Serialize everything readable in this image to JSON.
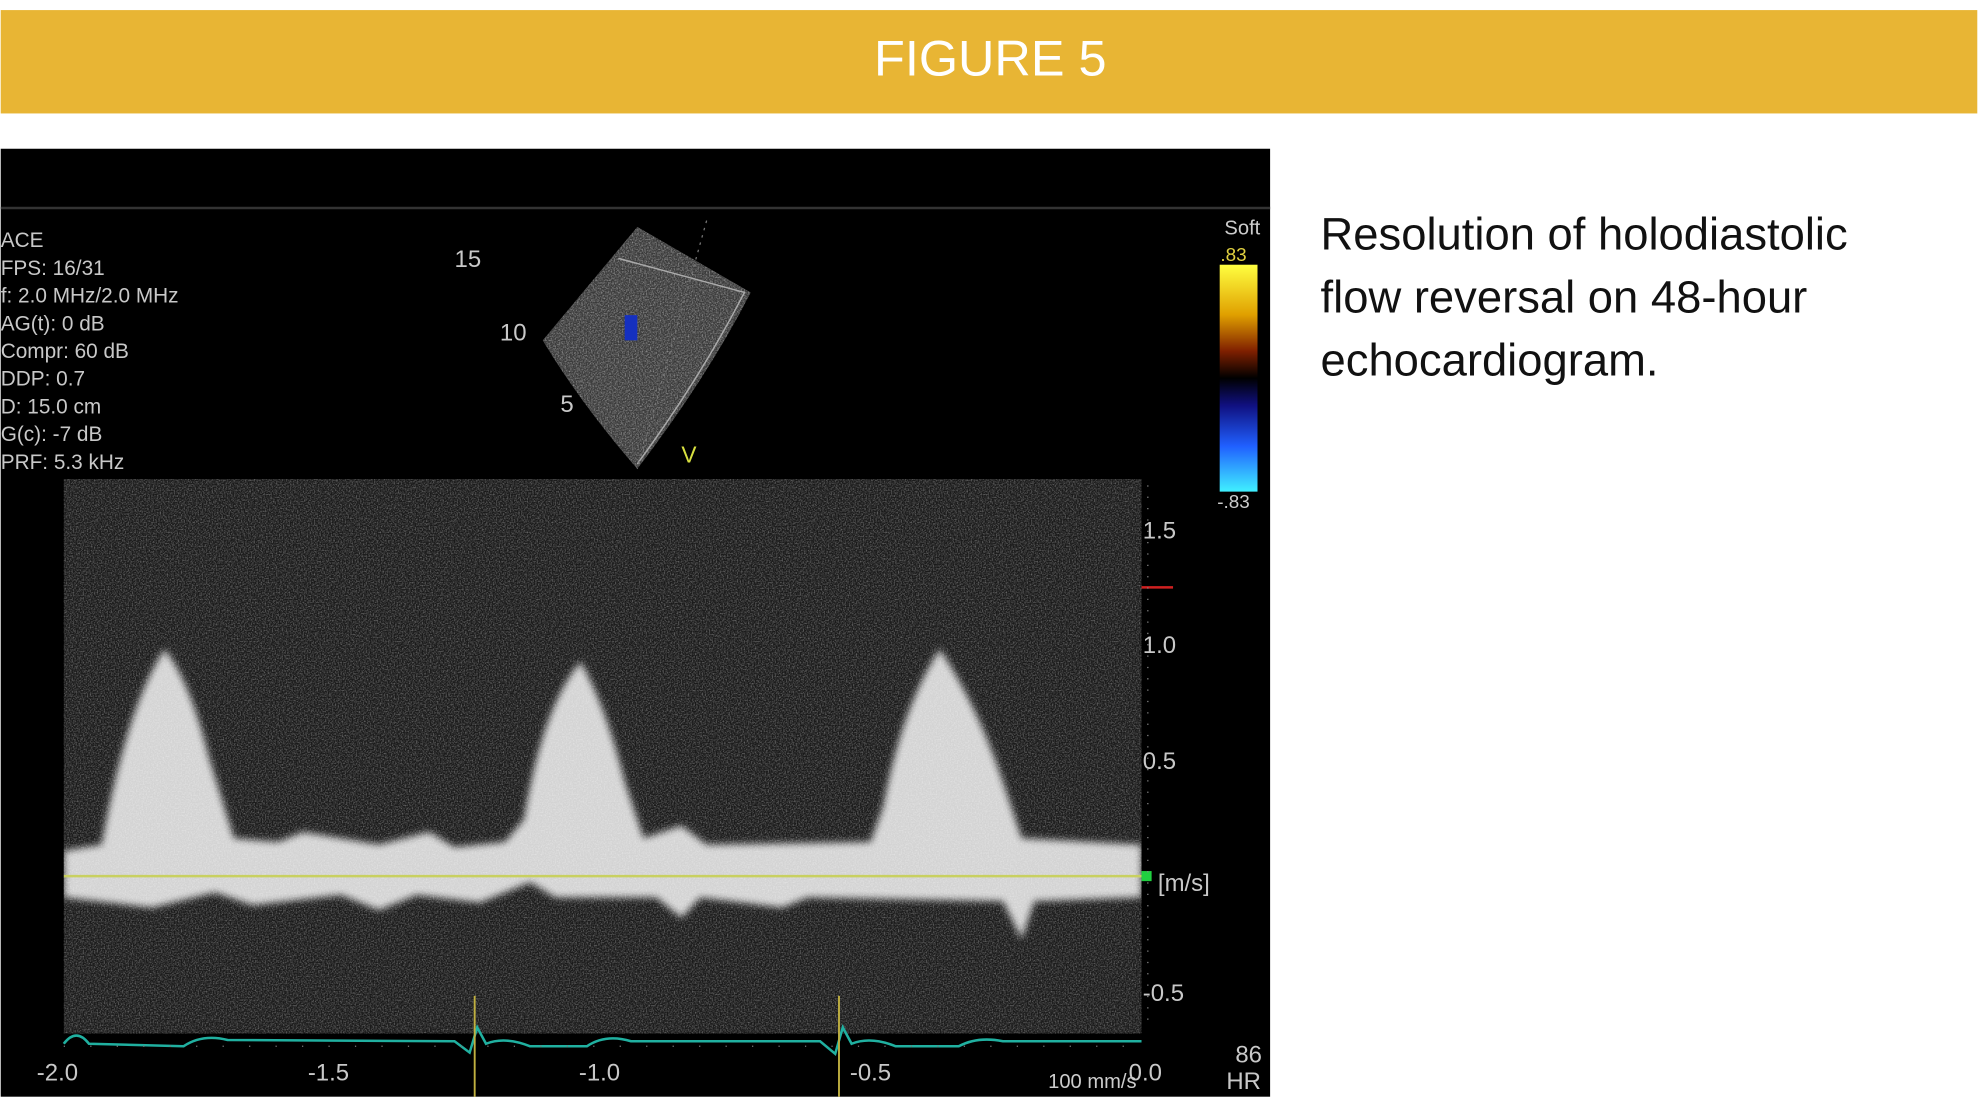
{
  "header": {
    "title": "FIGURE 5"
  },
  "caption": {
    "lines": [
      "Resolution of holodiastolic",
      "flow reversal on 48-hour",
      "echocardiogram."
    ]
  },
  "image": {
    "settings": [
      "ACE",
      "FPS: 16/31",
      "f: 2.0 MHz/2.0 MHz",
      "AG(t):  0 dB",
      "Compr: 60 dB",
      "DDP: 0.7",
      "D: 15.0 cm",
      "G(c): -7 dB",
      "PRF: 5.3 kHz"
    ],
    "depth_labels": [
      "15",
      "10",
      "5"
    ],
    "view_label": "V",
    "color_bar": {
      "title": "Soft",
      "max": ".83",
      "min": "-.83"
    },
    "velocity_labels": [
      "1.5",
      "1.0",
      "0.5",
      "[m/s]",
      "-0.5"
    ],
    "time_labels": [
      "-2.0",
      "-1.5",
      "-1.0",
      "-0.5",
      "0.0"
    ],
    "sweep_speed": "100 mm/s",
    "heart_rate": "86",
    "heart_rate_label": "HR"
  }
}
